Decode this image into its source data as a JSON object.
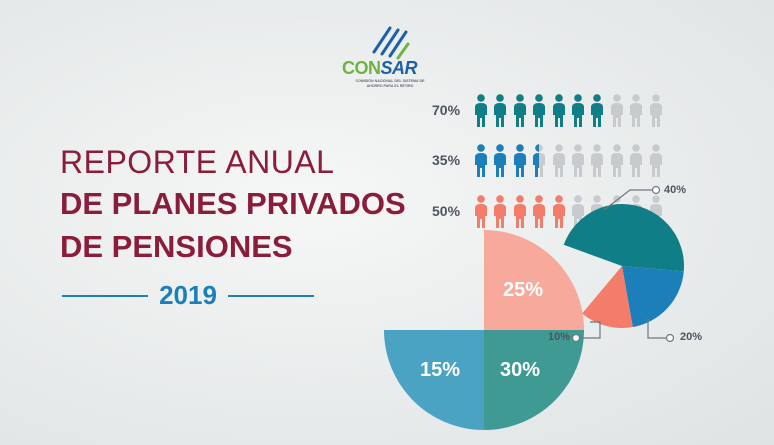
{
  "logo": {
    "brand_first": "CON",
    "brand_second": "SAR",
    "tagline": "COMISIÓN NACIONAL DEL SISTEMA DE AHORRO PARA EL RETIRO"
  },
  "title": {
    "line1": "REPORTE ANUAL",
    "line2": "DE PLANES PRIVADOS",
    "line3": "DE PENSIONES",
    "year": "2019"
  },
  "pictograph": {
    "rows": [
      {
        "label": "70%",
        "value": 70,
        "color": "#0f7e86"
      },
      {
        "label": "35%",
        "value": 35,
        "color": "#1c7fb9"
      },
      {
        "label": "50%",
        "value": 50,
        "color": "#f47c6b"
      }
    ],
    "icons_per_row": 10,
    "inactive_color": "#c8cbcd"
  },
  "colors": {
    "teal": "#0f7e86",
    "blue": "#1c7fb9",
    "salmon": "#f47c6b",
    "light_salmon": "#f7a99b",
    "sea_blue": "#4aa3c3",
    "sea_teal": "#3f9a93",
    "light_grey": "#e9eaec",
    "title": "#8a1d3a",
    "year": "#1c7fb9"
  },
  "big_pie": {
    "slices": [
      {
        "label": "25%"
      },
      {
        "label": "30%"
      },
      {
        "label": "15%"
      }
    ]
  },
  "small_pie": {
    "callouts": [
      {
        "label": "40%"
      },
      {
        "label": "20%"
      },
      {
        "label": "10%"
      }
    ]
  }
}
